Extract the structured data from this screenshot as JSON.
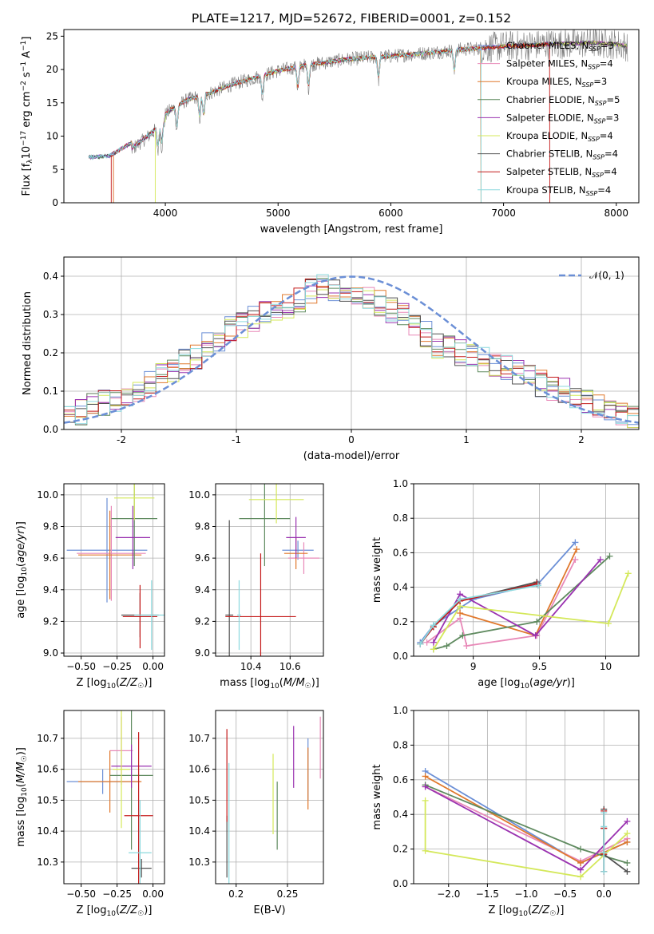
{
  "figure_title": "PLATE=1217, MJD=52672, FIBERID=0001, z=0.152",
  "models": [
    {
      "label": "Chabrier MILES, N_SSP=3",
      "name": "Chabrier MILES",
      "nssp": "3",
      "color": "#6b8fd6"
    },
    {
      "label": "Salpeter MILES, N_SSP=4",
      "name": "Salpeter MILES",
      "nssp": "4",
      "color": "#e889b8"
    },
    {
      "label": "Kroupa MILES, N_SSP=3",
      "name": "Kroupa MILES",
      "nssp": "3",
      "color": "#e0782c"
    },
    {
      "label": "Chabrier ELODIE, N_SSP=5",
      "name": "Chabrier ELODIE",
      "nssp": "5",
      "color": "#5f8a5f"
    },
    {
      "label": "Salpeter ELODIE, N_SSP=3",
      "name": "Salpeter ELODIE",
      "nssp": "3",
      "color": "#9a32b0"
    },
    {
      "label": "Kroupa ELODIE, N_SSP=4",
      "name": "Kroupa ELODIE",
      "nssp": "4",
      "color": "#d4e85a"
    },
    {
      "label": "Chabrier STELIB, N_SSP=4",
      "name": "Chabrier STELIB",
      "nssp": "4",
      "color": "#505050"
    },
    {
      "label": "Salpeter STELIB, N_SSP=4",
      "name": "Salpeter STELIB",
      "nssp": "4",
      "color": "#c41a1a"
    },
    {
      "label": "Kroupa STELIB, N_SSP=4",
      "name": "Kroupa STELIB",
      "nssp": "4",
      "color": "#8cd9de"
    }
  ],
  "chart_data": [
    {
      "id": "spectrum",
      "type": "line",
      "xlabel": "wavelength [Angstrom, rest frame]",
      "ylabel": "Flux [f_λ 10^-17 erg cm^-2 s^-1 A^-1]",
      "xlim": [
        3100,
        8200
      ],
      "ylim": [
        0,
        26
      ],
      "xticks": [
        4000,
        5000,
        6000,
        7000,
        8000
      ],
      "yticks": [
        0,
        5,
        10,
        15,
        20,
        25
      ],
      "grid": false,
      "legend_position": "top-right",
      "continuum_x": [
        3320,
        3500,
        3550,
        3700,
        3850,
        3950,
        4050,
        4200,
        4400,
        4600,
        4800,
        5000,
        5200,
        5400,
        5600,
        5800,
        6000,
        6200,
        6400,
        6600,
        6800,
        7000,
        7200,
        7400,
        7600,
        7800,
        8000,
        8100
      ],
      "continuum_y": [
        6.8,
        7.0,
        7.5,
        9.0,
        11.0,
        12.5,
        14.0,
        15.5,
        16.5,
        17.8,
        18.8,
        19.8,
        20.5,
        21.0,
        21.5,
        21.8,
        22.0,
        22.3,
        22.6,
        23.0,
        23.2,
        23.5,
        23.6,
        23.8,
        23.9,
        24.0,
        23.8,
        23.5
      ],
      "absorption_features": [
        3934,
        3968,
        4102,
        4304,
        4340,
        4861,
        5175,
        5270,
        5890,
        6563
      ],
      "model_start_wavelengths": {
        "Salpeter MILES": 3540,
        "Kroupa MILES": 3540,
        "Salpeter STELIB": 3520,
        "Kroupa ELODIE": 3910
      },
      "model_end_wavelengths": {
        "Salpeter STELIB": 7410,
        "Kroupa MILES": 6800,
        "Kroupa STELIB": 6800
      }
    },
    {
      "id": "residual-histogram",
      "type": "step",
      "xlabel": "(data-model)/error",
      "ylabel": "Normed distribution",
      "xlim": [
        -2.5,
        2.5
      ],
      "ylim": [
        0,
        0.45
      ],
      "xticks": [
        -2,
        -1,
        0,
        1,
        2
      ],
      "yticks": [
        0.0,
        0.1,
        0.2,
        0.3,
        0.4
      ],
      "grid": true,
      "legend_position": "top-right",
      "reference_label": "𝒩(0, 1)",
      "reference_color": "#6b8fd6",
      "bin_edges": [
        -2.5,
        -2.4,
        -2.3,
        -2.2,
        -2.1,
        -2.0,
        -1.9,
        -1.8,
        -1.7,
        -1.6,
        -1.5,
        -1.4,
        -1.3,
        -1.2,
        -1.1,
        -1.0,
        -0.9,
        -0.8,
        -0.7,
        -0.6,
        -0.5,
        -0.4,
        -0.3,
        -0.2,
        -0.1,
        0.0,
        0.1,
        0.2,
        0.3,
        0.4,
        0.5,
        0.6,
        0.7,
        0.8,
        0.9,
        1.0,
        1.1,
        1.2,
        1.3,
        1.4,
        1.5,
        1.6,
        1.7,
        1.8,
        1.9,
        2.0,
        2.1,
        2.2,
        2.3,
        2.4,
        2.5
      ],
      "base_counts": [
        0.04,
        0.045,
        0.065,
        0.07,
        0.075,
        0.08,
        0.1,
        0.12,
        0.14,
        0.15,
        0.18,
        0.19,
        0.22,
        0.23,
        0.26,
        0.27,
        0.29,
        0.3,
        0.31,
        0.32,
        0.34,
        0.36,
        0.37,
        0.36,
        0.35,
        0.35,
        0.34,
        0.33,
        0.31,
        0.3,
        0.27,
        0.25,
        0.22,
        0.21,
        0.2,
        0.19,
        0.18,
        0.17,
        0.16,
        0.15,
        0.14,
        0.12,
        0.11,
        0.1,
        0.09,
        0.07,
        0.06,
        0.05,
        0.04,
        0.03
      ]
    },
    {
      "id": "age-vs-z",
      "type": "errorbar",
      "xlabel": "Z [log₁₀(Z/Z☉)]",
      "ylabel": "age [log₁₀(age/yr)]",
      "xlim": [
        -0.62,
        0.08
      ],
      "ylim": [
        8.98,
        10.07
      ],
      "xticks": [
        -0.5,
        -0.25,
        0.0
      ],
      "xticklabels": [
        "−0.50",
        "−0.25",
        "0.00"
      ],
      "yticks": [
        9.0,
        9.2,
        9.4,
        9.6,
        9.8,
        10.0
      ],
      "grid": true,
      "points": [
        {
          "model": "Chabrier MILES",
          "x": -0.32,
          "xerr": 0.28,
          "y": 9.65,
          "yerr": 0.33
        },
        {
          "model": "Salpeter MILES",
          "x": -0.29,
          "xerr": 0.24,
          "y": 9.63,
          "yerr": 0.3
        },
        {
          "model": "Kroupa MILES",
          "x": -0.3,
          "xerr": 0.22,
          "y": 9.62,
          "yerr": 0.28
        },
        {
          "model": "Chabrier ELODIE",
          "x": -0.13,
          "xerr": 0.16,
          "y": 9.85,
          "yerr": 0.3
        },
        {
          "model": "Salpeter ELODIE",
          "x": -0.14,
          "xerr": 0.12,
          "y": 9.73,
          "yerr": 0.2
        },
        {
          "model": "Kroupa ELODIE",
          "x": -0.13,
          "xerr": 0.14,
          "y": 9.98,
          "yerr": 0.14
        },
        {
          "model": "Chabrier STELIB",
          "x": -0.09,
          "xerr": 0.13,
          "y": 9.24,
          "yerr": 0.14
        },
        {
          "model": "Salpeter STELIB",
          "x": -0.09,
          "xerr": 0.12,
          "y": 9.23,
          "yerr": 0.2
        },
        {
          "model": "Kroupa STELIB",
          "x": -0.01,
          "xerr": 0.12,
          "y": 9.24,
          "yerr": 0.22
        }
      ]
    },
    {
      "id": "age-vs-mass",
      "type": "errorbar",
      "xlabel": "mass [log₁₀(M/M☉)]",
      "ylabel": "",
      "xlim": [
        10.22,
        10.77
      ],
      "ylim": [
        8.98,
        10.07
      ],
      "xticks": [
        10.4,
        10.6
      ],
      "yticks": [
        9.0,
        9.2,
        9.4,
        9.6,
        9.8,
        10.0
      ],
      "grid": true,
      "points": [
        {
          "model": "Chabrier MILES",
          "x": 10.64,
          "xerr": 0.08,
          "y": 9.65,
          "yerr": 0.06
        },
        {
          "model": "Salpeter MILES",
          "x": 10.67,
          "xerr": 0.08,
          "y": 9.6,
          "yerr": 0.1
        },
        {
          "model": "Kroupa MILES",
          "x": 10.63,
          "xerr": 0.06,
          "y": 9.63,
          "yerr": 0.1
        },
        {
          "model": "Chabrier ELODIE",
          "x": 10.47,
          "xerr": 0.13,
          "y": 9.85,
          "yerr": 0.3
        },
        {
          "model": "Salpeter ELODIE",
          "x": 10.63,
          "xerr": 0.05,
          "y": 9.73,
          "yerr": 0.13
        },
        {
          "model": "Kroupa ELODIE",
          "x": 10.53,
          "xerr": 0.14,
          "y": 9.97,
          "yerr": 0.15
        },
        {
          "model": "Chabrier STELIB",
          "x": 10.29,
          "xerr": 0.02,
          "y": 9.24,
          "yerr": 0.6
        },
        {
          "model": "Salpeter STELIB",
          "x": 10.45,
          "xerr": 0.18,
          "y": 9.23,
          "yerr": 0.4
        },
        {
          "model": "Kroupa STELIB",
          "x": 10.34,
          "xerr": 0.01,
          "y": 9.24,
          "yerr": 0.22
        }
      ]
    },
    {
      "id": "mass-weight-vs-age",
      "type": "line",
      "xlabel": "age [log₁₀(age/yr)]",
      "ylabel": "mass weight",
      "xlim": [
        8.55,
        10.25
      ],
      "ylim": [
        0,
        1
      ],
      "xticks": [
        9.0,
        9.5,
        10.0
      ],
      "yticks": [
        0.0,
        0.2,
        0.4,
        0.6,
        0.8,
        1.0
      ],
      "grid": true,
      "series": [
        {
          "model": "Chabrier MILES",
          "x": [
            8.6,
            8.7,
            8.9,
            9.0,
            9.49,
            9.77
          ],
          "y": [
            0.08,
            0.18,
            0.28,
            0.33,
            0.42,
            0.66
          ]
        },
        {
          "model": "Salpeter MILES",
          "x": [
            8.65,
            8.9,
            8.95,
            9.48,
            9.77
          ],
          "y": [
            0.08,
            0.22,
            0.06,
            0.12,
            0.56
          ]
        },
        {
          "model": "Kroupa MILES",
          "x": [
            8.9,
            9.47,
            9.78
          ],
          "y": [
            0.25,
            0.12,
            0.62
          ]
        },
        {
          "model": "Chabrier ELODIE",
          "x": [
            8.7,
            8.8,
            8.92,
            9.48,
            10.03
          ],
          "y": [
            0.04,
            0.06,
            0.12,
            0.2,
            0.58
          ]
        },
        {
          "model": "Salpeter ELODIE",
          "x": [
            8.7,
            8.9,
            9.47,
            9.96
          ],
          "y": [
            0.08,
            0.36,
            0.12,
            0.56
          ]
        },
        {
          "model": "Kroupa ELODIE",
          "x": [
            8.7,
            8.9,
            10.02,
            10.17
          ],
          "y": [
            0.04,
            0.29,
            0.19,
            0.48
          ]
        },
        {
          "model": "Chabrier STELIB",
          "x": [
            8.6,
            8.7,
            8.9,
            9.48
          ],
          "y": [
            0.07,
            0.17,
            0.32,
            0.43
          ]
        },
        {
          "model": "Salpeter STELIB",
          "x": [
            8.6,
            8.7,
            8.9,
            9.48
          ],
          "y": [
            0.07,
            0.17,
            0.32,
            0.42
          ]
        },
        {
          "model": "Kroupa STELIB",
          "x": [
            8.6,
            8.7,
            8.9,
            9.49
          ],
          "y": [
            0.07,
            0.18,
            0.33,
            0.41
          ]
        }
      ]
    },
    {
      "id": "mass-vs-z",
      "type": "errorbar",
      "xlabel": "Z [log₁₀(Z/Z☉)]",
      "ylabel": "mass [log₁₀(M/M☉)]",
      "xlim": [
        -0.62,
        0.08
      ],
      "ylim": [
        10.23,
        10.79
      ],
      "xticks": [
        -0.5,
        -0.25,
        0.0
      ],
      "xticklabels": [
        "−0.50",
        "−0.25",
        "0.00"
      ],
      "yticks": [
        10.3,
        10.4,
        10.5,
        10.6,
        10.7
      ],
      "grid": true,
      "points": [
        {
          "model": "Chabrier MILES",
          "x": -0.35,
          "xerr": 0.25,
          "y": 10.56,
          "yerr": 0.04
        },
        {
          "model": "Salpeter MILES",
          "x": -0.22,
          "xerr": 0.08,
          "y": 10.66,
          "yerr": 0.11
        },
        {
          "model": "Kroupa MILES",
          "x": -0.3,
          "xerr": 0.22,
          "y": 10.56,
          "yerr": 0.1
        },
        {
          "model": "Chabrier ELODIE",
          "x": -0.15,
          "xerr": 0.15,
          "y": 10.58,
          "yerr": 0.24
        },
        {
          "model": "Salpeter ELODIE",
          "x": -0.15,
          "xerr": 0.14,
          "y": 10.61,
          "yerr": 0.07
        },
        {
          "model": "Kroupa ELODIE",
          "x": -0.22,
          "xerr": 0.06,
          "y": 10.6,
          "yerr": 0.19
        },
        {
          "model": "Chabrier STELIB",
          "x": -0.08,
          "xerr": 0.07,
          "y": 10.28,
          "yerr": 0.03
        },
        {
          "model": "Salpeter STELIB",
          "x": -0.1,
          "xerr": 0.1,
          "y": 10.45,
          "yerr": 0.27
        },
        {
          "model": "Kroupa STELIB",
          "x": -0.09,
          "xerr": 0.08,
          "y": 10.33,
          "yerr": 0.17
        }
      ]
    },
    {
      "id": "mass-vs-ebv",
      "type": "errorbar",
      "xlabel": "E(B-V)",
      "ylabel": "",
      "xlim": [
        0.18,
        0.285
      ],
      "ylim": [
        10.23,
        10.79
      ],
      "xticks": [
        0.2,
        0.25
      ],
      "yticks": [
        10.3,
        10.4,
        10.5,
        10.6,
        10.7
      ],
      "grid": true,
      "points": [
        {
          "model": "Chabrier MILES",
          "x": 0.27,
          "y": 10.6,
          "yerr": 0.1
        },
        {
          "model": "Salpeter MILES",
          "x": 0.282,
          "y": 10.67,
          "yerr": 0.1
        },
        {
          "model": "Kroupa MILES",
          "x": 0.27,
          "y": 10.57,
          "yerr": 0.1
        },
        {
          "model": "Chabrier ELODIE",
          "x": 0.24,
          "y": 10.45,
          "yerr": 0.11
        },
        {
          "model": "Salpeter ELODIE",
          "x": 0.256,
          "y": 10.64,
          "yerr": 0.1
        },
        {
          "model": "Kroupa ELODIE",
          "x": 0.236,
          "y": 10.52,
          "yerr": 0.13
        },
        {
          "model": "Chabrier STELIB",
          "x": 0.191,
          "y": 10.35,
          "yerr": 0.1
        },
        {
          "model": "Salpeter STELIB",
          "x": 0.191,
          "y": 10.58,
          "yerr": 0.15
        },
        {
          "model": "Kroupa STELIB",
          "x": 0.193,
          "y": 10.42,
          "yerr": 0.2
        }
      ]
    },
    {
      "id": "mass-weight-vs-z",
      "type": "line",
      "xlabel": "Z [log₁₀(Z/Z☉)]",
      "ylabel": "mass weight",
      "xlim": [
        -2.45,
        0.45
      ],
      "ylim": [
        0,
        1
      ],
      "xticks": [
        -2.0,
        -1.5,
        -1.0,
        -0.5,
        0.0
      ],
      "xticklabels": [
        "−2.0",
        "−1.5",
        "−1.0",
        "−0.5",
        "0.0"
      ],
      "yticks": [
        0.0,
        0.2,
        0.4,
        0.6,
        0.8,
        1.0
      ],
      "grid": true,
      "series": [
        {
          "model": "Chabrier MILES",
          "x": [
            -2.3,
            -0.3,
            0.3
          ],
          "y": [
            0.65,
            0.12,
            0.24
          ]
        },
        {
          "model": "Salpeter MILES",
          "x": [
            -2.3,
            -0.3,
            0.3
          ],
          "y": [
            0.56,
            0.13,
            0.26
          ]
        },
        {
          "model": "Kroupa MILES",
          "x": [
            -2.3,
            -0.3,
            0.3
          ],
          "y": [
            0.62,
            0.12,
            0.24
          ]
        },
        {
          "model": "Chabrier ELODIE",
          "x": [
            -2.3,
            -0.3,
            0.3
          ],
          "y": [
            0.57,
            0.2,
            0.12
          ]
        },
        {
          "model": "Salpeter ELODIE",
          "x": [
            -2.3,
            -0.3,
            0.3
          ],
          "y": [
            0.56,
            0.08,
            0.36
          ]
        },
        {
          "model": "Kroupa ELODIE",
          "x": [
            -2.3,
            -2.3,
            -0.3,
            0.3
          ],
          "y": [
            0.48,
            0.19,
            0.04,
            0.29
          ]
        },
        {
          "model": "Chabrier STELIB",
          "x": [
            0.0,
            0.0,
            0.0,
            0.3
          ],
          "y": [
            0.43,
            0.32,
            0.17,
            0.07
          ]
        },
        {
          "model": "Salpeter STELIB",
          "x": [
            0.0,
            0.0,
            0.0,
            0.0
          ],
          "y": [
            0.42,
            0.32,
            0.17,
            0.07
          ]
        },
        {
          "model": "Kroupa STELIB",
          "x": [
            0.0,
            0.0,
            0.0,
            0.0
          ],
          "y": [
            0.41,
            0.33,
            0.18,
            0.07
          ]
        }
      ]
    }
  ]
}
